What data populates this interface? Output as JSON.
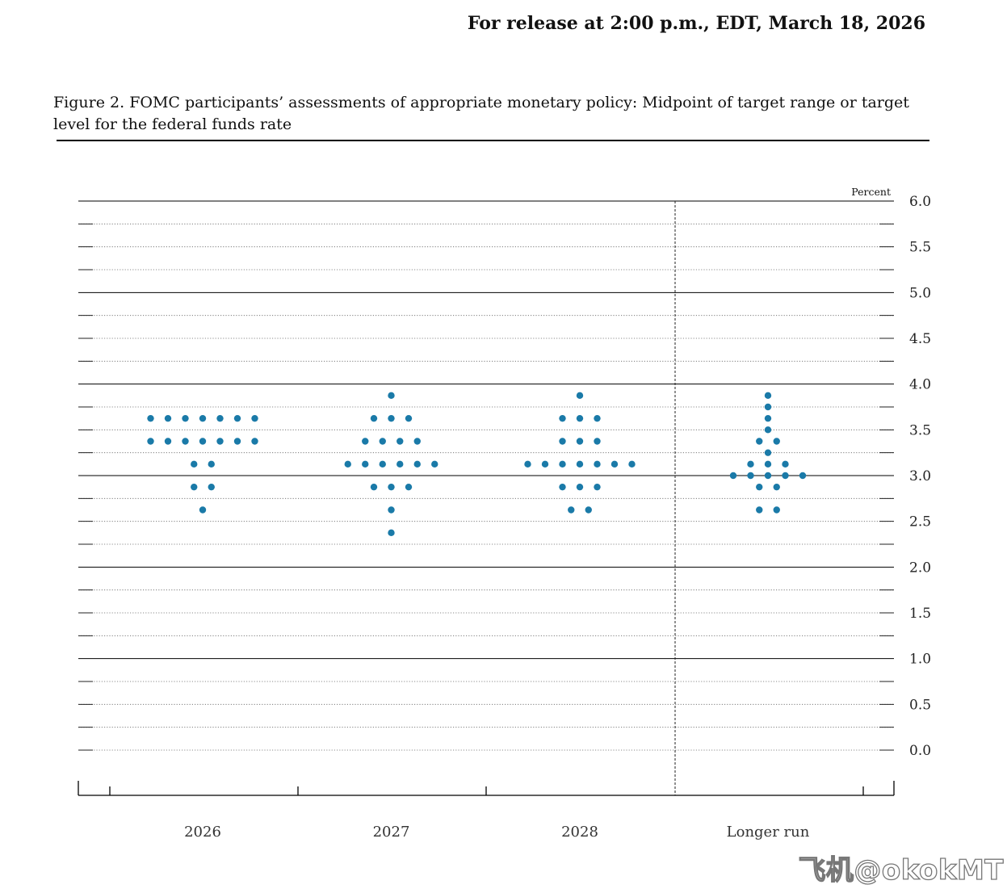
{
  "header": {
    "release_text": "For release at 2:00 p.m., EDT, March 18, 2026",
    "figure_title": "Figure 2. FOMC participants’ assessments of appropriate monetary policy: Midpoint of target range or target level for the federal funds rate"
  },
  "chart_data": {
    "type": "scatter",
    "unit_label": "Percent",
    "categories": [
      "2026",
      "2027",
      "2028",
      "Longer run"
    ],
    "ylim": [
      0,
      6
    ],
    "y_ticks": [
      "6.0",
      "5.5",
      "5.0",
      "4.5",
      "4.0",
      "3.5",
      "3.0",
      "2.5",
      "2.0",
      "1.5",
      "1.0",
      "0.5",
      "0.0"
    ],
    "dot_color": "#1a7aa8",
    "grid": "dotted minor at 0.25, solid at whole percents",
    "series": [
      {
        "category": "2026",
        "points": [
          {
            "y": 3.625,
            "count": 7
          },
          {
            "y": 3.375,
            "count": 7
          },
          {
            "y": 3.125,
            "count": 2
          },
          {
            "y": 2.875,
            "count": 2
          },
          {
            "y": 2.625,
            "count": 1
          }
        ]
      },
      {
        "category": "2027",
        "points": [
          {
            "y": 3.875,
            "count": 1
          },
          {
            "y": 3.625,
            "count": 3
          },
          {
            "y": 3.375,
            "count": 4
          },
          {
            "y": 3.125,
            "count": 6
          },
          {
            "y": 2.875,
            "count": 3
          },
          {
            "y": 2.625,
            "count": 1
          },
          {
            "y": 2.375,
            "count": 1
          }
        ]
      },
      {
        "category": "2028",
        "points": [
          {
            "y": 3.875,
            "count": 1
          },
          {
            "y": 3.625,
            "count": 3
          },
          {
            "y": 3.375,
            "count": 3
          },
          {
            "y": 3.125,
            "count": 7
          },
          {
            "y": 2.875,
            "count": 3
          },
          {
            "y": 2.625,
            "count": 2
          }
        ]
      },
      {
        "category": "Longer run",
        "points": [
          {
            "y": 3.875,
            "count": 1
          },
          {
            "y": 3.75,
            "count": 1
          },
          {
            "y": 3.625,
            "count": 1
          },
          {
            "y": 3.5,
            "count": 1
          },
          {
            "y": 3.375,
            "count": 2
          },
          {
            "y": 3.25,
            "count": 1
          },
          {
            "y": 3.125,
            "count": 3
          },
          {
            "y": 3.0,
            "count": 5
          },
          {
            "y": 2.875,
            "count": 2
          },
          {
            "y": 2.625,
            "count": 2
          }
        ]
      }
    ]
  },
  "watermark": {
    "text": "飞机@okokMT"
  }
}
